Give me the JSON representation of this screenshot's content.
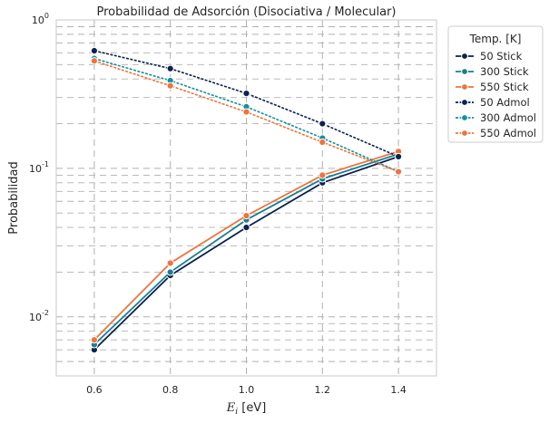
{
  "chart_data": {
    "type": "line",
    "title": "Probabilidad de Adsorción (Disociativa / Molecular)",
    "xlabel_main": "E",
    "xlabel_sub": "i",
    "xlabel_unit": " [eV]",
    "ylabel": "Probabilidad",
    "yscale": "log",
    "xlim": [
      0.5,
      1.5
    ],
    "ylim": [
      0.004,
      1.0
    ],
    "x_ticks": [
      "0.6",
      "0.8",
      "1.0",
      "1.2",
      "1.4"
    ],
    "y_ticks": [
      {
        "base": "10",
        "exp": "-2",
        "value": 0.01
      },
      {
        "base": "10",
        "exp": "-1",
        "value": 0.1
      },
      {
        "base": "10",
        "exp": "0",
        "value": 1.0
      }
    ],
    "grid": true,
    "legend": {
      "title": "Temp. [K]",
      "placement": "outside-top-right"
    },
    "x": [
      0.6,
      0.8,
      1.0,
      1.2,
      1.4
    ],
    "series": [
      {
        "name": "50 Stick",
        "color": "#0b2150",
        "style": "solid",
        "values": [
          0.006,
          0.019,
          0.04,
          0.08,
          0.12
        ]
      },
      {
        "name": "300 Stick",
        "color": "#1a7f8e",
        "style": "solid",
        "values": [
          0.0065,
          0.02,
          0.045,
          0.085,
          0.125
        ]
      },
      {
        "name": "550 Stick",
        "color": "#f0723c",
        "style": "solid",
        "values": [
          0.007,
          0.023,
          0.048,
          0.09,
          0.13
        ]
      },
      {
        "name": "50 Admol",
        "color": "#0b2150",
        "style": "dashed",
        "values": [
          0.62,
          0.47,
          0.32,
          0.2,
          0.12
        ]
      },
      {
        "name": "300 Admol",
        "color": "#14909c",
        "style": "dashed",
        "values": [
          0.55,
          0.39,
          0.26,
          0.16,
          0.095
        ]
      },
      {
        "name": "550 Admol",
        "color": "#f0723c",
        "style": "dashed",
        "values": [
          0.53,
          0.36,
          0.24,
          0.15,
          0.095
        ]
      }
    ]
  }
}
